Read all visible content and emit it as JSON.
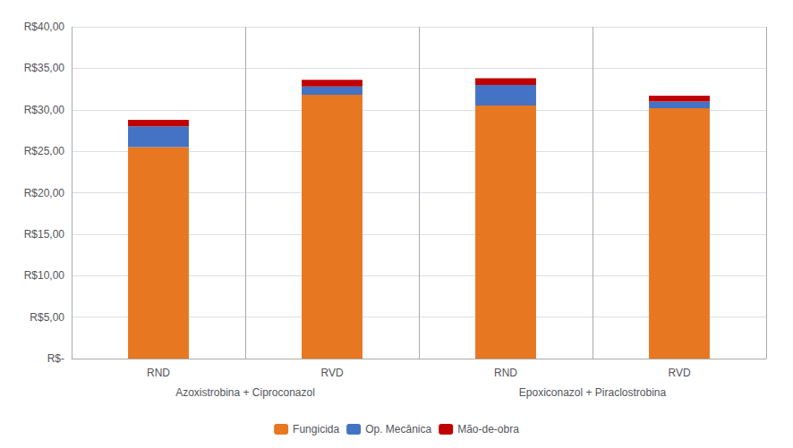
{
  "chart_data": {
    "type": "bar",
    "stacked": true,
    "categories": [
      "RND",
      "RVD",
      "RND",
      "RVD"
    ],
    "group_labels": [
      "Azoxistrobina + Ciproconazol",
      "Epoxiconazol + Piraclostrobina"
    ],
    "series": [
      {
        "name": "Fungicida",
        "color": "#E87722",
        "values": [
          25.5,
          31.8,
          30.5,
          30.2
        ]
      },
      {
        "name": "Op. Mecânica",
        "color": "#4472C4",
        "values": [
          2.5,
          1.0,
          2.5,
          0.8
        ]
      },
      {
        "name": "Mão-de-obra",
        "color": "#C00000",
        "values": [
          0.8,
          0.8,
          0.8,
          0.7
        ]
      }
    ],
    "ylim": [
      0,
      40
    ],
    "yticks": [
      {
        "value": 0,
        "label": "R$-"
      },
      {
        "value": 5,
        "label": "R$5,00"
      },
      {
        "value": 10,
        "label": "R$10,00"
      },
      {
        "value": 15,
        "label": "R$15,00"
      },
      {
        "value": 20,
        "label": "R$20,00"
      },
      {
        "value": 25,
        "label": "R$25,00"
      },
      {
        "value": 30,
        "label": "R$30,00"
      },
      {
        "value": 35,
        "label": "R$35,00"
      },
      {
        "value": 40,
        "label": "R$40,00"
      }
    ],
    "grid": true,
    "legend": "bottom"
  }
}
